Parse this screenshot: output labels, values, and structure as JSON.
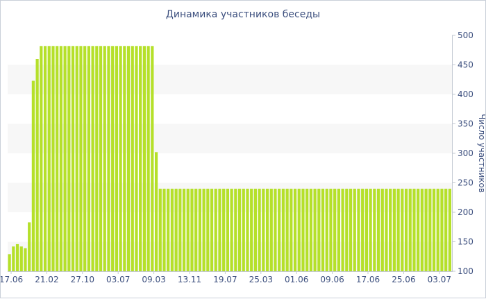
{
  "chart_data": {
    "type": "bar",
    "title": "Динамика участников беседы",
    "ylabel": "Число участников",
    "xlabel": "",
    "ylim": [
      100,
      500
    ],
    "yticks": [
      100,
      150,
      200,
      250,
      300,
      350,
      400,
      450,
      500
    ],
    "x_tick_labels": [
      "17.06",
      "21.02",
      "27.10",
      "03.07",
      "09.03",
      "13.11",
      "19.07",
      "25.03",
      "01.06",
      "09.06",
      "17.06",
      "25.06",
      "03.07"
    ],
    "y_axis_position": "right",
    "grid": "alternating horizontal bands",
    "bar_color": "#b5e02a",
    "band_color": "#f7f7f7",
    "values": [
      129,
      142,
      146,
      142,
      139,
      183,
      423,
      460,
      482,
      482,
      482,
      482,
      482,
      482,
      482,
      482,
      482,
      482,
      482,
      482,
      482,
      482,
      482,
      482,
      482,
      482,
      482,
      482,
      482,
      482,
      482,
      482,
      482,
      482,
      482,
      482,
      482,
      302,
      240,
      240,
      240,
      240,
      240,
      240,
      240,
      240,
      240,
      240,
      240,
      240,
      240,
      240,
      240,
      240,
      240,
      240,
      240,
      240,
      240,
      240,
      240,
      240,
      240,
      240,
      240,
      240,
      240,
      240,
      240,
      240,
      240,
      240,
      240,
      240,
      240,
      240,
      240,
      240,
      240,
      240,
      240,
      240,
      240,
      240,
      240,
      240,
      240,
      240,
      240,
      240,
      240,
      240,
      240,
      240,
      240,
      240,
      240,
      240,
      240,
      240,
      240,
      240,
      240,
      240,
      240,
      240,
      240,
      240,
      240,
      240,
      240,
      240
    ]
  }
}
